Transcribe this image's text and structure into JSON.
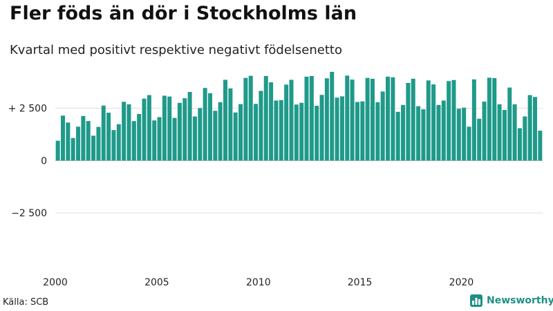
{
  "title": "Fler föds än dör i Stockholms län",
  "subtitle": "Kvartal med positivt respektive negativt födelsenetto",
  "source": "Källa: SCB",
  "brand": {
    "name": "Newsworthy",
    "icon": "bar-chart-icon",
    "color": "#1f8f84"
  },
  "colors": {
    "positive": "#1f9a8a",
    "negative": "#e0655a",
    "grid": "#dddddd",
    "zero": "#bbbbbb"
  },
  "chart_data": {
    "type": "bar",
    "title": "Fler föds än dör i Stockholms län",
    "subtitle": "Kvartal med positivt respektive negativt födelsenetto",
    "x_start": 2000,
    "x_unit": "quarter",
    "ylim": [
      -5200,
      4700
    ],
    "yticks": [
      {
        "value": 2500,
        "label": "+ 2 500"
      },
      {
        "value": 0,
        "label": "0"
      },
      {
        "value": -2500,
        "label": "−2 500"
      }
    ],
    "xticks": [
      "2000",
      "2005",
      "2010",
      "2015",
      "2020"
    ],
    "grid": true,
    "legend": "none",
    "values": [
      950,
      2150,
      1820,
      1080,
      1620,
      2130,
      1890,
      1190,
      1610,
      2630,
      2290,
      1460,
      1740,
      2810,
      2690,
      1890,
      2230,
      2960,
      3130,
      1920,
      2080,
      3100,
      3060,
      2040,
      2760,
      2980,
      3280,
      2110,
      2510,
      3470,
      3220,
      2380,
      2790,
      3860,
      3450,
      2300,
      2700,
      3950,
      4050,
      2710,
      3330,
      4040,
      3740,
      2870,
      2890,
      3630,
      3860,
      2680,
      2760,
      4010,
      4040,
      2620,
      3140,
      3930,
      4240,
      3010,
      3070,
      4060,
      3870,
      2800,
      2830,
      3950,
      3910,
      2790,
      3300,
      4010,
      3980,
      2330,
      2660,
      3710,
      3910,
      2600,
      2450,
      3830,
      3640,
      2660,
      2870,
      3800,
      3850,
      2480,
      2530,
      1620,
      3880,
      2000,
      2820,
      3960,
      3940,
      2690,
      2420,
      3490,
      2690,
      1550,
      2110,
      3130,
      3040,
      1430
    ]
  }
}
